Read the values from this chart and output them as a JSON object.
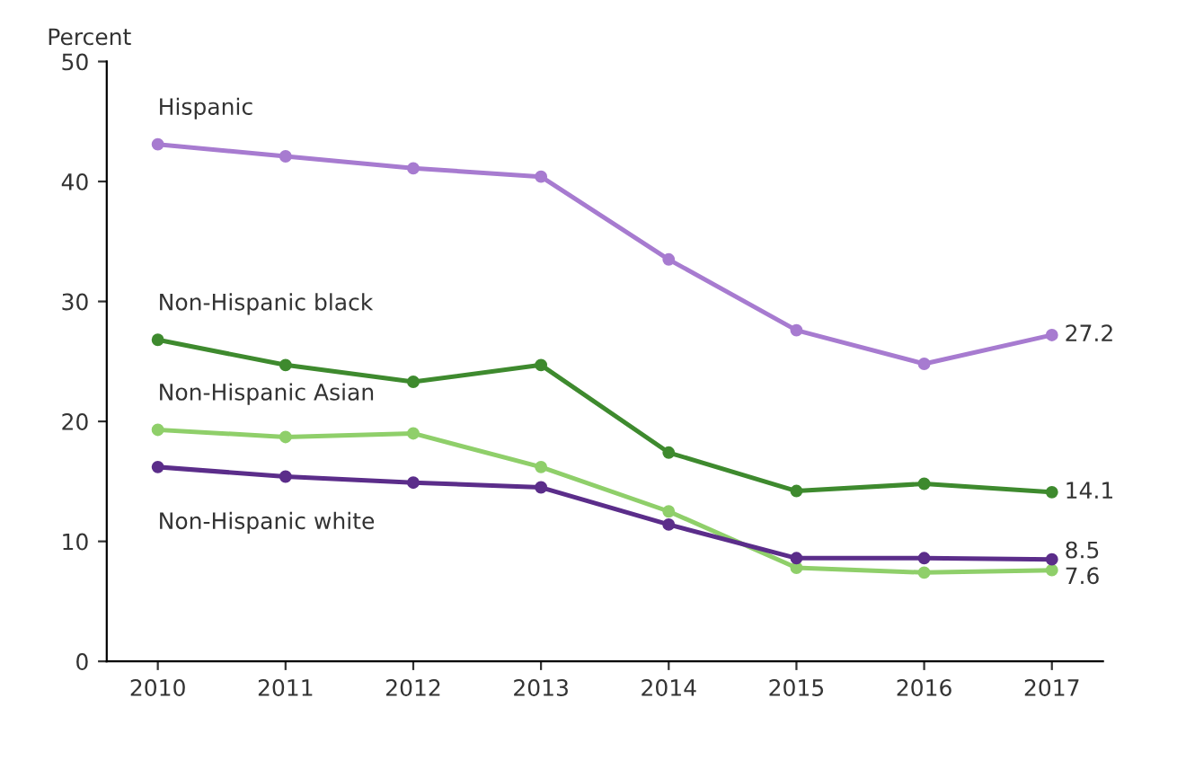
{
  "chart_data": {
    "type": "line",
    "ylabel": "Percent",
    "categories": [
      "2010",
      "2011",
      "2012",
      "2013",
      "2014",
      "2015",
      "2016",
      "2017"
    ],
    "ylim": [
      0,
      50
    ],
    "yticks": [
      0,
      10,
      20,
      30,
      40,
      50
    ],
    "grid": false,
    "legend": false,
    "marker": "circle",
    "line_style": "solid",
    "series": [
      {
        "name": "Hispanic",
        "color": "#a77bd0",
        "values": [
          43.1,
          42.1,
          41.1,
          40.4,
          33.5,
          27.6,
          24.8,
          27.2
        ],
        "value_labels": [
          null,
          null,
          null,
          null,
          null,
          null,
          null,
          "27.2"
        ]
      },
      {
        "name": "Non-Hispanic black",
        "color": "#3e8a2e",
        "values": [
          26.8,
          24.7,
          23.3,
          24.7,
          17.4,
          14.2,
          14.8,
          14.1
        ],
        "value_labels": [
          null,
          null,
          null,
          null,
          null,
          null,
          null,
          "14.1"
        ]
      },
      {
        "name": "Non-Hispanic Asian",
        "color": "#8fcf6a",
        "values": [
          19.3,
          18.7,
          19.0,
          16.2,
          12.5,
          7.8,
          7.4,
          7.6
        ],
        "value_labels": [
          null,
          null,
          null,
          null,
          null,
          null,
          null,
          "7.6"
        ]
      },
      {
        "name": "Non-Hispanic white",
        "color": "#5b2d8a",
        "values": [
          16.2,
          15.4,
          14.9,
          14.5,
          11.4,
          8.6,
          8.6,
          8.5
        ],
        "value_labels": [
          null,
          null,
          null,
          null,
          null,
          null,
          null,
          "8.5"
        ]
      }
    ]
  }
}
